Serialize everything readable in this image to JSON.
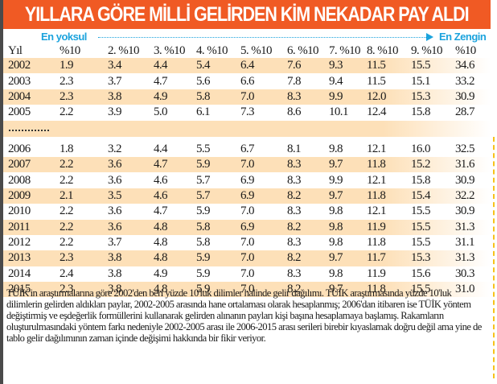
{
  "title": "YILLARA GÖRE MİLLİ GELİRDEN KİM NEKADAR PAY ALDI",
  "range": {
    "left_label": "En yoksul",
    "right_label": "En Zengin",
    "accent_color": "#1ba3dd"
  },
  "colors": {
    "title_bg": "#f05a24",
    "row_shade": "#fde0b8"
  },
  "table": {
    "headers": [
      "Yıl",
      "%10",
      "2. %10",
      "3. %10",
      "4. %10",
      "5. %10",
      "6. %10",
      "7. %10",
      "8. %10",
      "9. %10",
      "%10"
    ],
    "group1": [
      [
        "2002",
        "1.9",
        "3.4",
        "4.4",
        "5.4",
        "6.4",
        "7.6",
        "9.3",
        "11.5",
        "15.5",
        "34.6"
      ],
      [
        "2003",
        "2.3",
        "3.7",
        "4.7",
        "5.6",
        "6.6",
        "7.8",
        "9.4",
        "11.5",
        "15.1",
        "33.2"
      ],
      [
        "2004",
        "2.3",
        "3.8",
        "4.9",
        "5.8",
        "7.0",
        "8.3",
        "9.9",
        "12.0",
        "15.3",
        "30.9"
      ],
      [
        "2005",
        "2.2",
        "3.9",
        "5.0",
        "6.1",
        "7.3",
        "8.6",
        "10.1",
        "12.4",
        "15.8",
        "28.7"
      ]
    ],
    "separator": "............",
    "group2": [
      [
        "2006",
        "1.8",
        "3.2",
        "4.4",
        "5.5",
        "6.7",
        "8.1",
        "9.8",
        "12.1",
        "16.0",
        "32.5"
      ],
      [
        "2007",
        "2.2",
        "3.6",
        "4.7",
        "5.9",
        "7.0",
        "8.3",
        "9.7",
        "11.8",
        "15.2",
        "31.6"
      ],
      [
        "2008",
        "2.2",
        "3.6",
        "4.6",
        "5.7",
        "6.9",
        "8.3",
        "9.9",
        "12.1",
        "15.8",
        "30.9"
      ],
      [
        "2009",
        "2.1",
        "3.5",
        "4.6",
        "5.7",
        "6.9",
        "8.2",
        "9.7",
        "11.8",
        "15.4",
        "32.2"
      ],
      [
        "2010",
        "2.2",
        "3.6",
        "4.7",
        "5.9",
        "7.0",
        "8.3",
        "9.8",
        "12.1",
        "15.5",
        "30.9"
      ],
      [
        "2011",
        "2.2",
        "3.6",
        "4.8",
        "5.8",
        "6.9",
        "8.2",
        "9.8",
        "11.9",
        "15.5",
        "31.3"
      ],
      [
        "2012",
        "2.2",
        "3.7",
        "4.8",
        "5.8",
        "7.0",
        "8.3",
        "9.8",
        "11.8",
        "15.5",
        "31.1"
      ],
      [
        "2013",
        "2.3",
        "3.8",
        "4.8",
        "5.9",
        "7.0",
        "8.2",
        "9.7",
        "11.7",
        "15.3",
        "31.3"
      ],
      [
        "2014",
        "2.4",
        "3.8",
        "4.9",
        "5.9",
        "7.0",
        "8.3",
        "9.8",
        "11.9",
        "15.6",
        "30.3"
      ],
      [
        "2015",
        "2.3",
        "3.8",
        "4.8",
        "5.9",
        "7.0",
        "8.2",
        "9.7",
        "11.8",
        "15.5",
        "31.0"
      ]
    ]
  },
  "footnote": "TÜİK'in araştırmalarına göre 2002'den beri yüzde 10'luk dilimler halinde gelir dağılımı. TÜİK araştırmasında yüzde 10'luk dilimlerin gelirden aldıkları paylar, 2002-2005 arasında hane ortalaması olarak hesaplanmış; 2006'dan itibaren ise TÜİK yöntem değiştirmiş ve eşdeğerlik formüllerini kullanarak gelirden alınanın payları kişi başına hesaplamaya başlamış. Rakamların oluşturulmasındaki yöntem farkı nedeniyle 2002-2005 arası ile 2006-2015 arası serileri birebir kıyaslamak doğru değil ama yine de tablo gelir dağılımının zaman içinde değişimi hakkında bir fikir veriyor."
}
